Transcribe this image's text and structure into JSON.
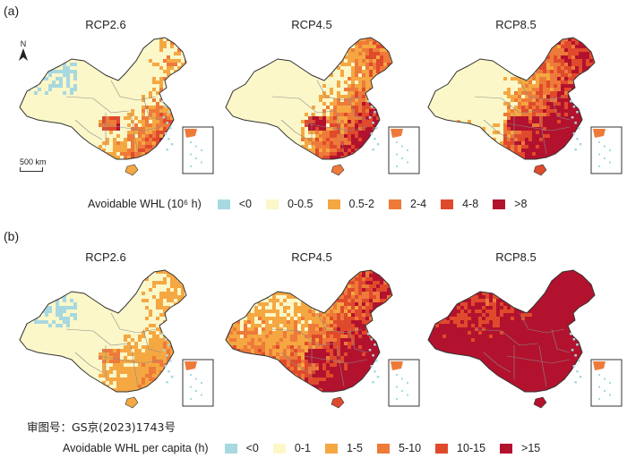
{
  "panel_a": {
    "label": "(a)",
    "scenarios": [
      "RCP2.6",
      "RCP4.5",
      "RCP8.5"
    ],
    "legend_title": "Avoidable WHL (10⁶ h)",
    "legend": [
      {
        "label": "<0",
        "color": "#a8d8e0"
      },
      {
        "label": "0-0.5",
        "color": "#fbf7c8"
      },
      {
        "label": "0.5-2",
        "color": "#f5a742"
      },
      {
        "label": "2-4",
        "color": "#ee7a3a"
      },
      {
        "label": "4-8",
        "color": "#e04a2c"
      },
      {
        "label": ">8",
        "color": "#b3122e"
      }
    ],
    "north_label": "N",
    "scale_label": "500 km"
  },
  "panel_b": {
    "label": "(b)",
    "scenarios": [
      "RCP2.6",
      "RCP4.5",
      "RCP8.5"
    ],
    "legend_title": "Avoidable WHL per capita (h)",
    "legend": [
      {
        "label": "<0",
        "color": "#a8d8e0"
      },
      {
        "label": "0-1",
        "color": "#fbf7c8"
      },
      {
        "label": "1-5",
        "color": "#f5a742"
      },
      {
        "label": "5-10",
        "color": "#ee7a3a"
      },
      {
        "label": "10-15",
        "color": "#e04a2c"
      },
      {
        "label": ">15",
        "color": "#b3122e"
      }
    ]
  },
  "approval_number": "审图号：GS京(2023)1743号"
}
